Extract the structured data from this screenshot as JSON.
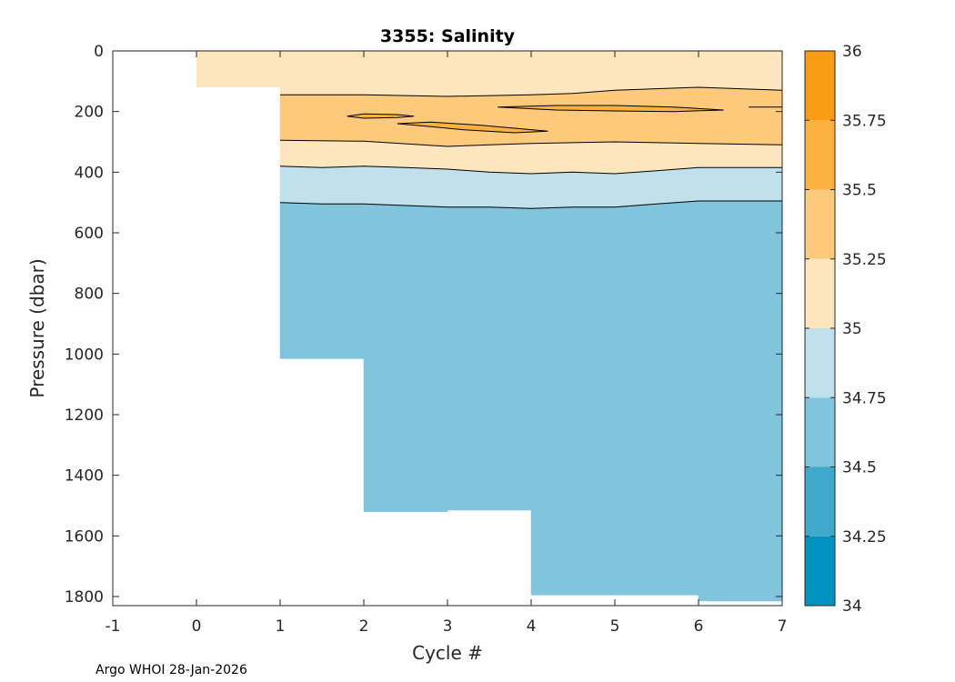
{
  "chart_data": {
    "type": "contourf",
    "title": "3355:  Salinity",
    "xlabel": "Cycle #",
    "ylabel": "Pressure (dbar)",
    "xlim": [
      -1,
      7
    ],
    "ylim": [
      1830,
      0
    ],
    "x_ticks": [
      "-1",
      "0",
      "1",
      "2",
      "3",
      "4",
      "5",
      "6",
      "7"
    ],
    "y_ticks": [
      "0",
      "200",
      "400",
      "600",
      "800",
      "1000",
      "1200",
      "1400",
      "1600",
      "1800"
    ],
    "colorbar": {
      "levels": [
        34,
        34.25,
        34.5,
        34.75,
        35,
        35.25,
        35.5,
        35.75,
        36
      ],
      "tick_labels": [
        "34",
        "34.25",
        "34.5",
        "34.75",
        "35",
        "35.25",
        "35.5",
        "35.75",
        "36"
      ],
      "colors": [
        "#0093c2",
        "#3fa9cc",
        "#80c4dd",
        "#c0e1ec",
        "#fde6bd",
        "#fcca7a",
        "#fbb040",
        "#f89c14"
      ]
    },
    "profiles": [
      {
        "cycle": 0,
        "max_pressure": 120
      },
      {
        "cycle": 1,
        "max_pressure": 1015
      },
      {
        "cycle": 2,
        "max_pressure": 1520
      },
      {
        "cycle": 3,
        "max_pressure": 1515
      },
      {
        "cycle": 4,
        "max_pressure": 1795
      },
      {
        "cycle": 5,
        "max_pressure": 1795
      },
      {
        "cycle": 6,
        "max_pressure": 1815
      },
      {
        "cycle": 7,
        "max_pressure": 1820
      }
    ],
    "contours": [
      {
        "level": 35.25,
        "x": [
          1,
          1.5,
          2,
          3,
          4,
          4.5,
          5,
          6,
          7
        ],
        "y": [
          145,
          145,
          145,
          150,
          145,
          140,
          130,
          120,
          130
        ]
      },
      {
        "level": 35.25,
        "x": [
          1,
          2,
          3,
          3.5,
          4,
          5,
          6,
          7
        ],
        "y": [
          295,
          298,
          315,
          310,
          305,
          300,
          305,
          310
        ]
      },
      {
        "level": 35.0,
        "x": [
          1,
          1.5,
          2,
          2.5,
          3,
          3.5,
          4,
          4.5,
          5,
          5.5,
          6,
          7
        ],
        "y": [
          380,
          385,
          380,
          385,
          390,
          400,
          405,
          400,
          405,
          395,
          385,
          385
        ]
      },
      {
        "level": 34.75,
        "x": [
          1,
          1.5,
          2,
          2.5,
          3,
          3.5,
          4,
          4.5,
          5,
          5.5,
          6,
          7
        ],
        "y": [
          500,
          505,
          505,
          510,
          515,
          515,
          520,
          515,
          515,
          505,
          495,
          495
        ]
      }
    ],
    "closed_contours": [
      {
        "level": 35.5,
        "x": [
          1.8,
          2.0,
          2.4,
          2.6,
          2.4,
          2.0,
          1.8
        ],
        "y": [
          215,
          208,
          210,
          215,
          220,
          222,
          215
        ]
      },
      {
        "level": 35.5,
        "x": [
          2.4,
          2.8,
          3.4,
          3.8,
          4.2,
          3.8,
          3.2,
          2.8,
          2.4
        ],
        "y": [
          240,
          235,
          245,
          255,
          265,
          270,
          260,
          250,
          240
        ]
      },
      {
        "level": 35.5,
        "x": [
          3.6,
          4.3,
          5.0,
          5.7,
          6.3,
          5.7,
          5.0,
          4.3,
          3.6
        ],
        "y": [
          185,
          180,
          180,
          185,
          195,
          200,
          198,
          195,
          185
        ]
      },
      {
        "level": 35.5,
        "x": [
          6.6,
          7.0
        ],
        "y": [
          185,
          185
        ]
      }
    ]
  },
  "footer": "Argo WHOI 28-Jan-2026"
}
